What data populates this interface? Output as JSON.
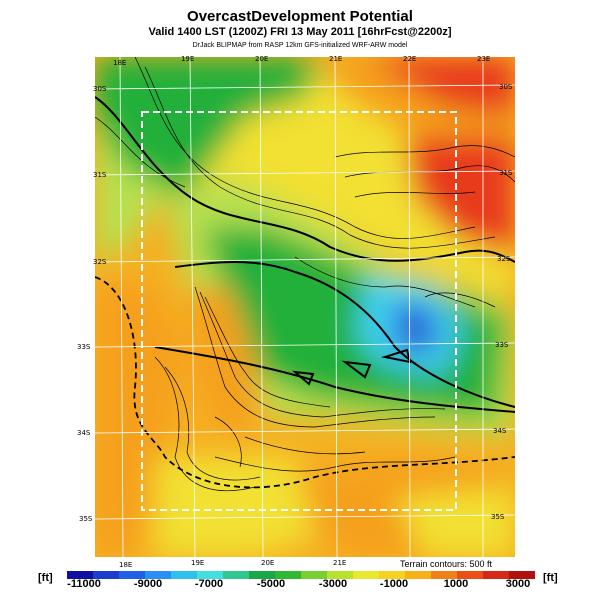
{
  "header": {
    "title": "OvercastDevelopment Potential",
    "valid": "Valid 1400 LST (1200Z) FRI 13 May 2011 [16hrFcst@2200z]",
    "credit": "DrJack BLIPMAP from RASP 12km GFS-initialized WRF-ARW model"
  },
  "map": {
    "lon_labels_top": [
      "18E",
      "19E",
      "20E",
      "21E",
      "22E",
      "23E"
    ],
    "lon_labels_bottom": [
      "18E",
      "19E",
      "20E",
      "21E"
    ],
    "lat_labels_left": [
      "30S",
      "31S",
      "32S",
      "33S",
      "34S",
      "35S"
    ],
    "lat_labels_right": [
      "30S",
      "31S",
      "32S",
      "33S",
      "34S",
      "35S"
    ],
    "terrain_note": "Terrain contours: 500 ft",
    "palette": {
      "deep_blue": "#2a5ad8",
      "cyan": "#40d0f0",
      "green": "#22b03a",
      "yellow_green": "#b8e050",
      "yellow": "#f2e030",
      "orange": "#f5a01e",
      "red": "#e83a1e"
    }
  },
  "colorbar": {
    "unit_left": "[ft]",
    "unit_right": "[ft]",
    "tick_labels": [
      "-11000",
      "-9000",
      "-7000",
      "-5000",
      "-3000",
      "-1000",
      "1000",
      "3000"
    ],
    "colors": [
      "#1010a0",
      "#1c3cd0",
      "#2060e8",
      "#2890f0",
      "#30c0f0",
      "#40e0e0",
      "#30c890",
      "#18a848",
      "#30b830",
      "#78d030",
      "#b8e030",
      "#e8e830",
      "#f8d020",
      "#f8b018",
      "#f08018",
      "#e85018",
      "#d82818",
      "#b01010"
    ]
  }
}
